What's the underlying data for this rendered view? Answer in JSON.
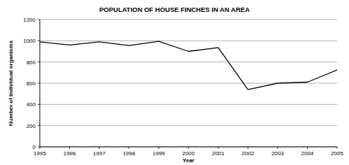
{
  "chart_data": {
    "type": "line",
    "title": "POPULATION OF HOUSE FINCHES IN AN AREA",
    "x_label": "Year",
    "y_label": "Number of individual organisms",
    "x": [
      1995,
      1996,
      1997,
      1998,
      1999,
      2000,
      2001,
      2002,
      2003,
      2004,
      2005
    ],
    "values": [
      990,
      960,
      990,
      955,
      995,
      900,
      935,
      540,
      600,
      610,
      725
    ],
    "color": "#000000",
    "xlim": [
      1995,
      2005
    ],
    "xticks": [
      1995,
      1996,
      1997,
      1998,
      1999,
      2000,
      2001,
      2002,
      2003,
      2004,
      2005
    ],
    "ylim": [
      0,
      1200
    ],
    "yticks": [
      0,
      200,
      400,
      600,
      800,
      1000,
      1200
    ],
    "grid": true
  }
}
